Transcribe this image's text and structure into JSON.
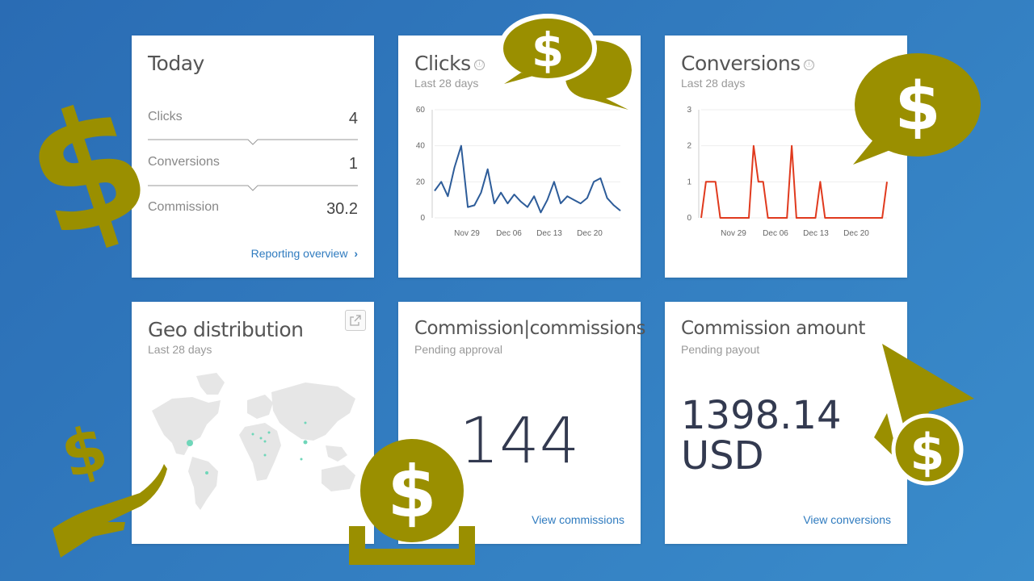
{
  "today": {
    "title": "Today",
    "rows": [
      {
        "label": "Clicks",
        "value": "4"
      },
      {
        "label": "Conversions",
        "value": "1"
      },
      {
        "label": "Commission",
        "value": "30.2"
      }
    ],
    "link": "Reporting overview"
  },
  "clicks": {
    "title": "Clicks",
    "subtitle": "Last 28 days",
    "info_icon": "ⓘ",
    "chart_data": {
      "type": "line",
      "ylim": [
        0,
        60
      ],
      "yticks": [
        "0",
        "20",
        "40",
        "60"
      ],
      "xticks": [
        "Nov 29",
        "Dec 06",
        "Dec 13",
        "Dec 20"
      ],
      "series": [
        {
          "color": "#2d5c99",
          "values": [
            15,
            20,
            12,
            28,
            40,
            6,
            7,
            14,
            27,
            8,
            14,
            8,
            13,
            9,
            6,
            12,
            3,
            10,
            20,
            8,
            12,
            10,
            8,
            11,
            20,
            22,
            11,
            7,
            4
          ]
        }
      ]
    }
  },
  "conversions": {
    "title": "Conversions",
    "subtitle": "Last 28 days",
    "info_icon": "ⓘ",
    "chart_data": {
      "type": "line",
      "ylim": [
        0,
        3
      ],
      "yticks": [
        "0",
        "1",
        "2",
        "3"
      ],
      "xticks": [
        "Nov 29",
        "Dec 06",
        "Dec 13",
        "Dec 20"
      ],
      "series": [
        {
          "color": "#e03a1e",
          "values": [
            0,
            1,
            1,
            1,
            0,
            0,
            0,
            0,
            0,
            0,
            0,
            2,
            1,
            1,
            0,
            0,
            0,
            0,
            0,
            2,
            0,
            0,
            0,
            0,
            0,
            1,
            0,
            0,
            0,
            0,
            0,
            0,
            0,
            0,
            0,
            0,
            0,
            0,
            0,
            1
          ]
        }
      ]
    }
  },
  "geo": {
    "title": "Geo distribution",
    "subtitle": "Last 28 days",
    "dot_color": "#6fd6b9"
  },
  "commissions": {
    "title": "Commission|commissions",
    "subtitle": "Pending approval",
    "value": "144",
    "link": "View commissions"
  },
  "amount": {
    "title": "Commission amount",
    "subtitle": "Pending payout",
    "value_line1": "1398.14",
    "value_line2": "USD",
    "link": "View conversions"
  },
  "decoration": {
    "color": "#9a8f00",
    "icons": [
      "dollar-sign-icon",
      "speech-bubble-dollar-icon",
      "hand-dollar-icon",
      "coin-tray-icon",
      "cursor-dollar-icon"
    ]
  }
}
